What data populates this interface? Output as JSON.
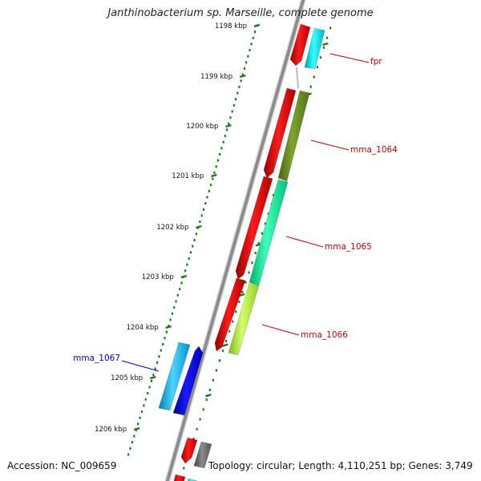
{
  "title": "Janthinobacterium sp. Marseille, complete genome",
  "accession_text": "Accession: NC_009659",
  "summary_text": "Topology: circular; Length: 4,110,251 bp; Genes: 3,749",
  "scale_labels": [
    "1198 kbp",
    "1199 kbp",
    "1200 kbp",
    "1201 kbp",
    "1202 kbp",
    "1203 kbp",
    "1204 kbp",
    "1205 kbp",
    "1206 kbp"
  ],
  "gene_labels": [
    {
      "text": "fpr",
      "color": "#cc0000"
    },
    {
      "text": "mma_1064",
      "color": "#cc0000"
    },
    {
      "text": "mma_1065",
      "color": "#cc0000"
    },
    {
      "text": "mma_1066",
      "color": "#cc0000"
    },
    {
      "text": "mma_1067",
      "color": "#0000cc"
    }
  ],
  "colors": {
    "backbone": "#8c8c8c",
    "ruler": "#1a7a1a",
    "cds": "#ee0000",
    "fpr": "#00e5ee",
    "mma_1064": "#6b8e23",
    "mma_1065": "#00fa9a",
    "mma_1066": "#adff2f",
    "mma_1067_cog": "#00bfff",
    "mma_1067_cds": "#0000ee",
    "grey_gene": "#666666"
  }
}
